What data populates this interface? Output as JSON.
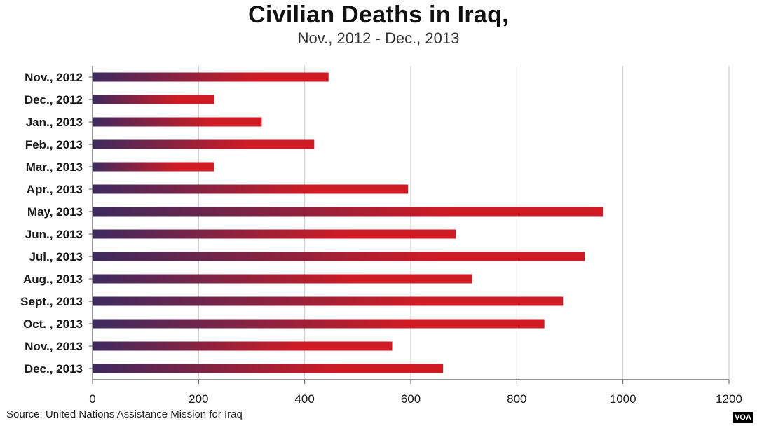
{
  "chart_data": {
    "type": "bar",
    "orientation": "horizontal",
    "title": "Civilian Deaths in Iraq,",
    "subtitle": "Nov., 2012 - Dec., 2013",
    "categories": [
      "Nov., 2012",
      "Dec., 2012",
      "Jan., 2013",
      "Feb., 2013",
      "Mar., 2013",
      "Apr., 2013",
      "May, 2013",
      "Jun., 2013",
      "Jul., 2013",
      "Aug., 2013",
      "Sept., 2013",
      "Oct. , 2013",
      "Nov., 2013",
      "Dec., 2013"
    ],
    "values": [
      445,
      230,
      319,
      418,
      229,
      595,
      963,
      685,
      928,
      716,
      887,
      852,
      565,
      661
    ],
    "xlim": [
      0,
      1200
    ],
    "xticks": [
      "0",
      "200",
      "400",
      "600",
      "800",
      "1000",
      "1200"
    ],
    "grid": "vertical",
    "bar_colors": {
      "start": "#3d2a5e",
      "end": "#d01b24"
    }
  },
  "source": "Source: United Nations Assistance Mission for Iraq",
  "logo": "VOA"
}
